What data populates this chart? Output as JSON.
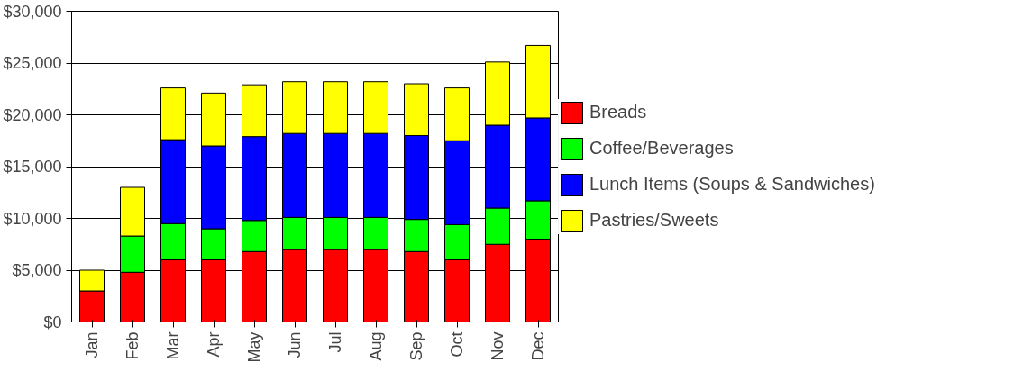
{
  "chart_data": {
    "type": "bar",
    "stacked": true,
    "categories": [
      "Jan",
      "Feb",
      "Mar",
      "Apr",
      "May",
      "Jun",
      "Jul",
      "Aug",
      "Sep",
      "Oct",
      "Nov",
      "Dec"
    ],
    "series": [
      {
        "name": "Breads",
        "color": "#ff0000",
        "values": [
          3000,
          4800,
          6000,
          6000,
          6800,
          7000,
          7000,
          7000,
          6800,
          6000,
          7500,
          8000
        ]
      },
      {
        "name": "Coffee/Beverages",
        "color": "#00ff00",
        "values": [
          null,
          3500,
          3500,
          3000,
          3000,
          3100,
          3100,
          3100,
          3100,
          3400,
          3500,
          3700
        ]
      },
      {
        "name": "Lunch Items (Soups & Sandwiches)",
        "color": "#0000ff",
        "values": [
          null,
          null,
          8100,
          8000,
          8100,
          8100,
          8100,
          8100,
          8100,
          8100,
          8000,
          8000
        ]
      },
      {
        "name": "Pastries/Sweets",
        "color": "#ffff00",
        "values": [
          2000,
          4700,
          5000,
          5100,
          5000,
          5000,
          5000,
          5000,
          5000,
          5100,
          6100,
          7000
        ]
      }
    ],
    "ylim": [
      0,
      30000
    ],
    "yticks": [
      {
        "value": 0,
        "label": "$0"
      },
      {
        "value": 5000,
        "label": "$5,000"
      },
      {
        "value": 10000,
        "label": "$10,000"
      },
      {
        "value": 15000,
        "label": "$15,000"
      },
      {
        "value": 20000,
        "label": "$20,000"
      },
      {
        "value": 25000,
        "label": "$25,000"
      },
      {
        "value": 30000,
        "label": "$30,000"
      }
    ],
    "grid": "y",
    "legend": "right"
  }
}
